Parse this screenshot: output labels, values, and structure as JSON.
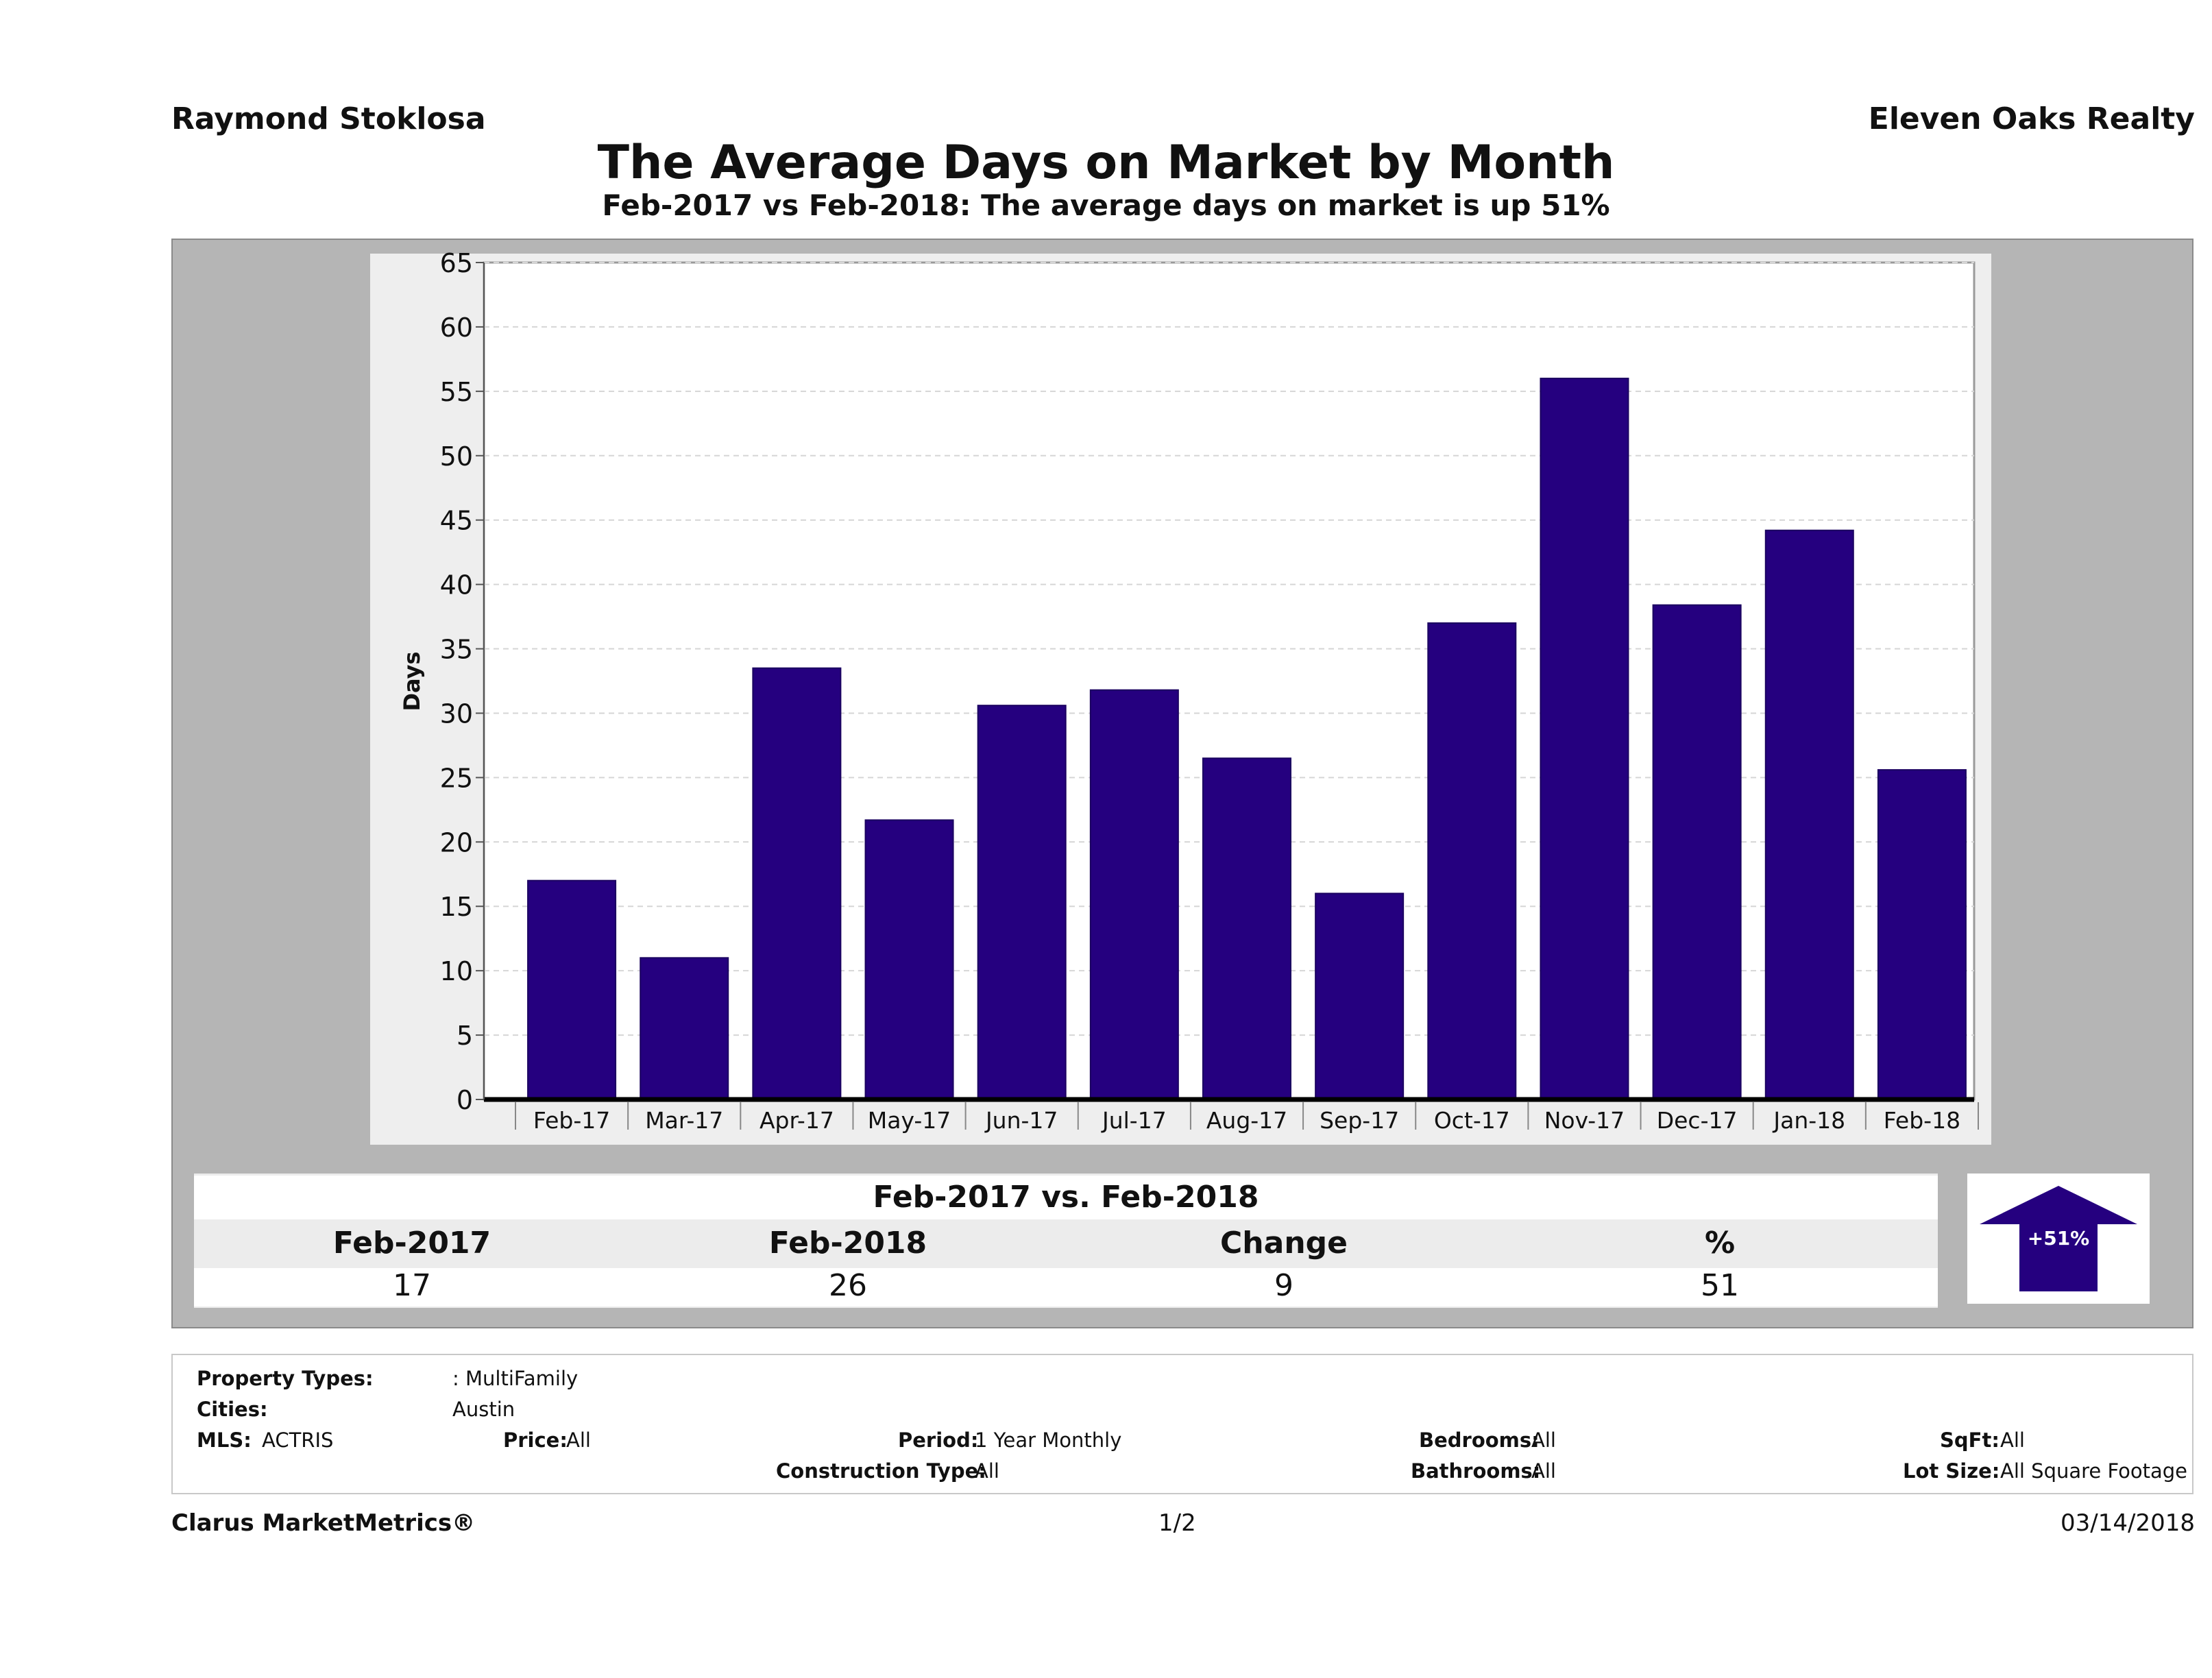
{
  "header": {
    "agent_name": "Raymond Stoklosa",
    "company": "Eleven Oaks Realty",
    "title": "The Average Days on Market by Month",
    "subtitle": "Feb-2017 vs Feb-2018: The average days on market is up 51%"
  },
  "chart_data": {
    "type": "bar",
    "title": "The Average Days on Market by Month",
    "xlabel": "",
    "ylabel": "Days",
    "ylim": [
      0,
      65
    ],
    "yticks": [
      0,
      5,
      10,
      15,
      20,
      25,
      30,
      35,
      40,
      45,
      50,
      55,
      60,
      65
    ],
    "grid": true,
    "categories": [
      "Feb-17",
      "Mar-17",
      "Apr-17",
      "May-17",
      "Jun-17",
      "Jul-17",
      "Aug-17",
      "Sep-17",
      "Oct-17",
      "Nov-17",
      "Dec-17",
      "Jan-18",
      "Feb-18"
    ],
    "values": [
      17,
      11,
      33.5,
      21.7,
      30.6,
      31.8,
      26.5,
      16,
      37,
      56,
      38.4,
      44.2,
      25.6
    ],
    "bar_color": "#25007f"
  },
  "summary": {
    "heading": "Feb-2017 vs. Feb-2018",
    "columns": [
      "Feb-2017",
      "Feb-2018",
      "Change",
      "%"
    ],
    "values": [
      "17",
      "26",
      "9",
      "51"
    ],
    "badge": "+51%",
    "arrow_color": "#25007f"
  },
  "filters": {
    "property_types_label": "Property Types:",
    "property_types_value": ": MultiFamily",
    "cities_label": "Cities:",
    "cities_value": "Austin",
    "mls_label": "MLS:",
    "mls_value": "ACTRIS",
    "price_label": "Price:",
    "price_value": "All",
    "period_label": "Period:",
    "period_value": "1 Year Monthly",
    "construction_label": "Construction Type:",
    "construction_value": "All",
    "bedrooms_label": "Bedrooms:",
    "bedrooms_value": "All",
    "bathrooms_label": "Bathrooms:",
    "bathrooms_value": "All",
    "sqft_label": "SqFt:",
    "sqft_value": "All",
    "lotsize_label": "Lot Size:",
    "lotsize_value": "All Square Footage"
  },
  "footer": {
    "brand": "Clarus MarketMetrics®",
    "page": "1/2",
    "date": "03/14/2018"
  }
}
